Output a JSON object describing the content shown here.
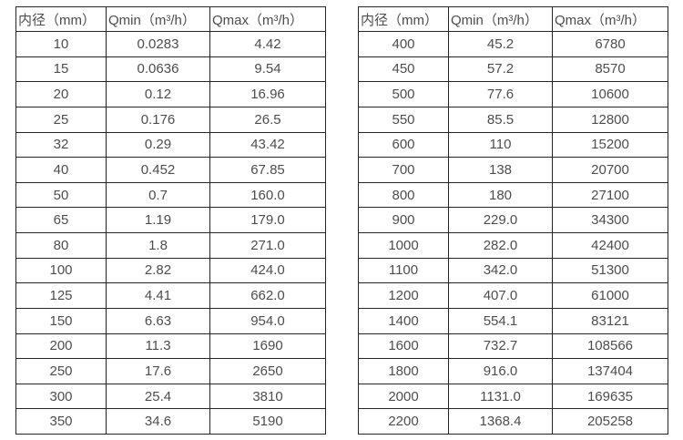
{
  "colors": {
    "background": "#ffffff",
    "border": "#262626",
    "text": "#4d4d4d"
  },
  "tables": [
    {
      "name": "flow-spec-table-small-diameters",
      "headers": [
        "内径（mm）",
        "Qmin（m³/h）",
        "Qmax（m³/h）"
      ],
      "rows": [
        [
          "10",
          "0.0283",
          "4.42"
        ],
        [
          "15",
          "0.0636",
          "9.54"
        ],
        [
          "20",
          "0.12",
          "16.96"
        ],
        [
          "25",
          "0.176",
          "26.5"
        ],
        [
          "32",
          "0.29",
          "43.42"
        ],
        [
          "40",
          "0.452",
          "67.85"
        ],
        [
          "50",
          "0.7",
          "160.0"
        ],
        [
          "65",
          "1.19",
          "179.0"
        ],
        [
          "80",
          "1.8",
          "271.0"
        ],
        [
          "100",
          "2.82",
          "424.0"
        ],
        [
          "125",
          "4.41",
          "662.0"
        ],
        [
          "150",
          "6.63",
          "954.0"
        ],
        [
          "200",
          "11.3",
          "1690"
        ],
        [
          "250",
          "17.6",
          "2650"
        ],
        [
          "300",
          "25.4",
          "3810"
        ],
        [
          "350",
          "34.6",
          "5190"
        ]
      ]
    },
    {
      "name": "flow-spec-table-large-diameters",
      "headers": [
        "内径（mm）",
        "Qmin（m³/h）",
        "Qmax（m³/h）"
      ],
      "rows": [
        [
          "400",
          "45.2",
          "6780"
        ],
        [
          "450",
          "57.2",
          "8570"
        ],
        [
          "500",
          "77.6",
          "10600"
        ],
        [
          "550",
          "85.5",
          "12800"
        ],
        [
          "600",
          "110",
          "15200"
        ],
        [
          "700",
          "138",
          "20700"
        ],
        [
          "800",
          "180",
          "27100"
        ],
        [
          "900",
          "229.0",
          "34300"
        ],
        [
          "1000",
          "282.0",
          "42400"
        ],
        [
          "1100",
          "342.0",
          "51300"
        ],
        [
          "1200",
          "407.0",
          "61000"
        ],
        [
          "1400",
          "554.1",
          "83121"
        ],
        [
          "1600",
          "732.7",
          "108566"
        ],
        [
          "1800",
          "916.0",
          "137404"
        ],
        [
          "2000",
          "1131.0",
          "169635"
        ],
        [
          "2200",
          "1368.4",
          "205258"
        ]
      ]
    }
  ]
}
